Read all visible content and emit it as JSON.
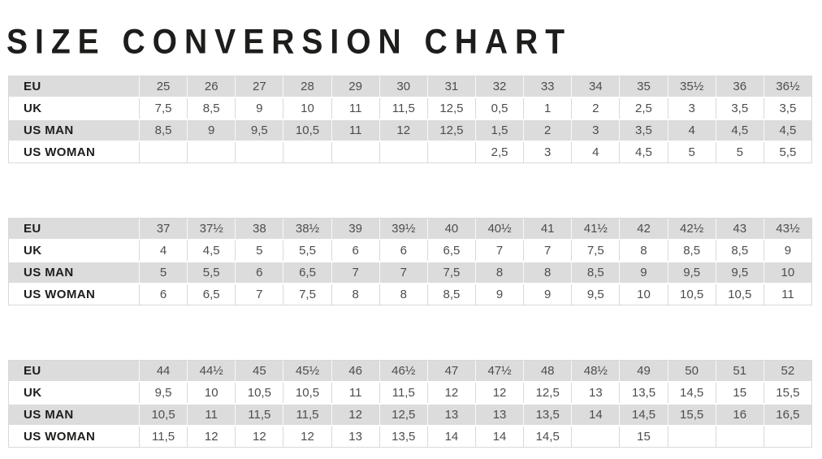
{
  "colors": {
    "background": "#ffffff",
    "row_gray": "#dcdcdc",
    "row_white": "#ffffff",
    "border": "#d9d9d9",
    "label_text": "#1d1d1b",
    "value_text": "#4d4d4d",
    "title_text": "#1d1d1b"
  },
  "chart_data": {
    "type": "table",
    "title": "SIZE CONVERSION CHART",
    "row_labels": [
      "EU",
      "UK",
      "US MAN",
      "US WOMAN"
    ],
    "tables": [
      {
        "rows": [
          {
            "label": "EU",
            "values": [
              "25",
              "26",
              "27",
              "28",
              "29",
              "30",
              "31",
              "32",
              "33",
              "34",
              "35",
              "35½",
              "36",
              "36½"
            ]
          },
          {
            "label": "UK",
            "values": [
              "7,5",
              "8,5",
              "9",
              "10",
              "11",
              "11,5",
              "12,5",
              "0,5",
              "1",
              "2",
              "2,5",
              "3",
              "3,5",
              "3,5"
            ]
          },
          {
            "label": "US MAN",
            "values": [
              "8,5",
              "9",
              "9,5",
              "10,5",
              "11",
              "12",
              "12,5",
              "1,5",
              "2",
              "3",
              "3,5",
              "4",
              "4,5",
              "4,5"
            ]
          },
          {
            "label": "US WOMAN",
            "values": [
              "",
              "",
              "",
              "",
              "",
              "",
              "",
              "2,5",
              "3",
              "4",
              "4,5",
              "5",
              "5",
              "5,5"
            ]
          }
        ]
      },
      {
        "rows": [
          {
            "label": "EU",
            "values": [
              "37",
              "37½",
              "38",
              "38½",
              "39",
              "39½",
              "40",
              "40½",
              "41",
              "41½",
              "42",
              "42½",
              "43",
              "43½"
            ]
          },
          {
            "label": "UK",
            "values": [
              "4",
              "4,5",
              "5",
              "5,5",
              "6",
              "6",
              "6,5",
              "7",
              "7",
              "7,5",
              "8",
              "8,5",
              "8,5",
              "9"
            ]
          },
          {
            "label": "US MAN",
            "values": [
              "5",
              "5,5",
              "6",
              "6,5",
              "7",
              "7",
              "7,5",
              "8",
              "8",
              "8,5",
              "9",
              "9,5",
              "9,5",
              "10"
            ]
          },
          {
            "label": "US WOMAN",
            "values": [
              "6",
              "6,5",
              "7",
              "7,5",
              "8",
              "8",
              "8,5",
              "9",
              "9",
              "9,5",
              "10",
              "10,5",
              "10,5",
              "11"
            ]
          }
        ]
      },
      {
        "rows": [
          {
            "label": "EU",
            "values": [
              "44",
              "44½",
              "45",
              "45½",
              "46",
              "46½",
              "47",
              "47½",
              "48",
              "48½",
              "49",
              "50",
              "51",
              "52"
            ]
          },
          {
            "label": "UK",
            "values": [
              "9,5",
              "10",
              "10,5",
              "10,5",
              "11",
              "11,5",
              "12",
              "12",
              "12,5",
              "13",
              "13,5",
              "14,5",
              "15",
              "15,5"
            ]
          },
          {
            "label": "US MAN",
            "values": [
              "10,5",
              "11",
              "11,5",
              "11,5",
              "12",
              "12,5",
              "13",
              "13",
              "13,5",
              "14",
              "14,5",
              "15,5",
              "16",
              "16,5"
            ]
          },
          {
            "label": "US WOMAN",
            "values": [
              "11,5",
              "12",
              "12",
              "12",
              "13",
              "13,5",
              "14",
              "14",
              "14,5",
              "",
              "15",
              "",
              "",
              ""
            ]
          }
        ]
      }
    ]
  }
}
